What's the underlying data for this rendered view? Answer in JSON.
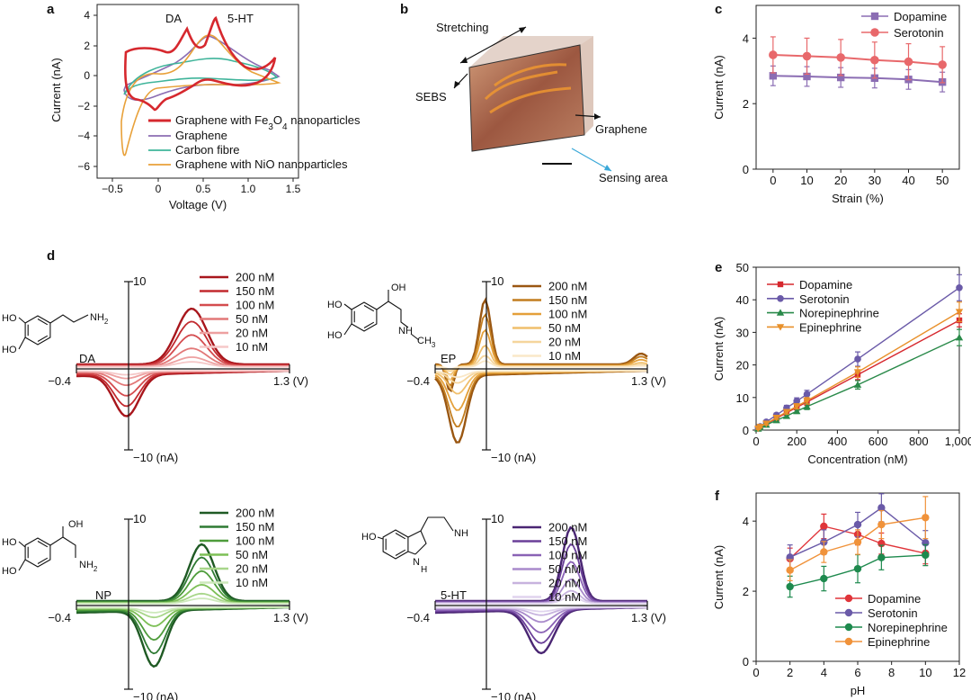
{
  "panel_labels": {
    "a": "a",
    "b": "b",
    "c": "c",
    "d": "d",
    "e": "e",
    "f": "f"
  },
  "panel_a": {
    "ylabel": "Current (nA)",
    "xlabel": "Voltage (V)",
    "yticks": [
      "4",
      "2",
      "0",
      "−2",
      "−4",
      "−6"
    ],
    "xticks": [
      "−0.5",
      "0",
      "0.5",
      "1.0",
      "1.5"
    ],
    "peak_labels": {
      "da": "DA",
      "ht": "5-HT"
    },
    "legend": [
      {
        "label": "Graphene with Fe3O4 nanoparticles",
        "color": "#d6282e"
      },
      {
        "label": "Graphene",
        "color": "#8b6db3"
      },
      {
        "label": "Carbon fibre",
        "color": "#3fb49a"
      },
      {
        "label": "Graphene with NiO nanoparticles",
        "color": "#e8a13a"
      }
    ]
  },
  "panel_b": {
    "labels": {
      "stretching": "Stretching",
      "sebs": "SEBS",
      "graphene": "Graphene",
      "sensing": "Sensing area"
    }
  },
  "panel_d": {
    "concentrations": [
      "200 nM",
      "150 nM",
      "100 nM",
      "50 nM",
      "20 nM",
      "10 nM"
    ],
    "ytop": "10",
    "ybottom": "−10 (nA)",
    "xleft": "−0.4",
    "xright": "1.3 (V)",
    "molecules": {
      "da": "DA",
      "ep": "EP",
      "np": "NP",
      "ht": "5-HT"
    },
    "colors": {
      "da": [
        "#a8161c",
        "#c22a2f",
        "#d44c4f",
        "#e27878",
        "#eda0a0",
        "#f5c8c8"
      ],
      "ep": [
        "#9a5712",
        "#c27d1f",
        "#e4a03a",
        "#f0bf6c",
        "#f5d59c",
        "#fae8c8"
      ],
      "np": [
        "#1f5a24",
        "#2e7a33",
        "#4e9c3b",
        "#7dbf56",
        "#a8d68a",
        "#cde9bb"
      ],
      "ht": [
        "#4a2673",
        "#6a3f98",
        "#8a62b5",
        "#a98acb",
        "#c7b3de",
        "#e0d4ee"
      ]
    },
    "atoms": {
      "ho": "HO",
      "oh": "OH",
      "nh2": "NH",
      "nh2_sub": "2",
      "ch3": "CH",
      "ch3_sub": "3",
      "nh": "NH",
      "h": "H",
      "n": "N"
    }
  },
  "chart_data": [
    {
      "id": "c",
      "type": "line",
      "title": "",
      "xlabel": "Strain (%)",
      "ylabel": "Current (nA)",
      "x": [
        0,
        10,
        20,
        30,
        40,
        50
      ],
      "xlim": [
        -5,
        55
      ],
      "ylim": [
        0,
        5
      ],
      "xticks": [
        "0",
        "10",
        "20",
        "30",
        "40",
        "50"
      ],
      "yticks": [
        "0",
        "2",
        "4"
      ],
      "legend_position": "top-right",
      "series": [
        {
          "name": "Dopamine",
          "color": "#8b6db3",
          "marker": "square",
          "values": [
            2.85,
            2.83,
            2.8,
            2.78,
            2.74,
            2.66
          ],
          "errors": [
            0.3,
            0.3,
            0.3,
            0.3,
            0.3,
            0.3
          ]
        },
        {
          "name": "Serotonin",
          "color": "#e8686b",
          "marker": "circle",
          "values": [
            3.49,
            3.45,
            3.41,
            3.33,
            3.28,
            3.19
          ],
          "errors": [
            0.55,
            0.55,
            0.55,
            0.55,
            0.55,
            0.55
          ]
        }
      ]
    },
    {
      "id": "e",
      "type": "line",
      "xlabel": "Concentration (nM)",
      "ylabel": "Current (nA)",
      "x": [
        10,
        20,
        50,
        100,
        150,
        200,
        250,
        500,
        1000
      ],
      "xlim": [
        0,
        1000
      ],
      "ylim": [
        0,
        50
      ],
      "xticks": [
        "0",
        "200",
        "400",
        "600",
        "800",
        "1,000"
      ],
      "yticks": [
        "0",
        "10",
        "20",
        "30",
        "40",
        "50"
      ],
      "legend_position": "top-left",
      "series": [
        {
          "name": "Dopamine",
          "color": "#d6282e",
          "marker": "square",
          "values": [
            0.5,
            0.9,
            1.9,
            3.6,
            5.3,
            7.0,
            8.6,
            17.0,
            33.7
          ],
          "errors": [
            0.3,
            0.3,
            0.4,
            0.5,
            0.7,
            0.8,
            1.0,
            1.5,
            2.0
          ]
        },
        {
          "name": "Serotonin",
          "color": "#6a5aa8",
          "marker": "circle",
          "values": [
            0.6,
            1.1,
            2.5,
            4.6,
            6.8,
            8.9,
            11.0,
            21.8,
            43.7
          ],
          "errors": [
            0.3,
            0.3,
            0.4,
            0.6,
            0.8,
            1.0,
            1.2,
            2.2,
            4.0
          ]
        },
        {
          "name": "Norepinephrine",
          "color": "#2a8a4a",
          "marker": "triangle-up",
          "values": [
            0.4,
            0.8,
            1.6,
            3.0,
            4.3,
            5.8,
            7.2,
            13.9,
            28.4
          ],
          "errors": [
            0.3,
            0.3,
            0.4,
            0.5,
            0.6,
            0.7,
            0.9,
            1.3,
            2.5
          ]
        },
        {
          "name": "Epinephrine",
          "color": "#e8902a",
          "marker": "triangle-down",
          "values": [
            0.5,
            1.0,
            2.0,
            3.8,
            5.6,
            7.3,
            9.0,
            17.8,
            36.3
          ],
          "errors": [
            0.3,
            0.3,
            0.4,
            0.5,
            0.7,
            0.8,
            1.0,
            1.6,
            3.0
          ]
        }
      ]
    },
    {
      "id": "f",
      "type": "line",
      "xlabel": "pH",
      "ylabel": "Current (nA)",
      "x": [
        2,
        4,
        6,
        7.4,
        10
      ],
      "xlim": [
        0,
        12
      ],
      "ylim": [
        0,
        4.8
      ],
      "xticks": [
        "0",
        "2",
        "4",
        "6",
        "8",
        "10",
        "12"
      ],
      "yticks": [
        "0",
        "2",
        "4"
      ],
      "legend_position": "bottom-right",
      "series": [
        {
          "name": "Dopamine",
          "color": "#e0353a",
          "marker": "circle",
          "values": [
            2.93,
            3.85,
            3.62,
            3.36,
            3.08
          ],
          "errors": [
            0.3,
            0.35,
            0.3,
            0.3,
            0.3
          ]
        },
        {
          "name": "Serotonin",
          "color": "#6a5aa8",
          "marker": "circle",
          "values": [
            2.97,
            3.4,
            3.9,
            4.38,
            3.38
          ],
          "errors": [
            0.35,
            0.35,
            0.35,
            0.4,
            0.35
          ]
        },
        {
          "name": "Norepinephrine",
          "color": "#1e8a4e",
          "marker": "circle",
          "values": [
            2.13,
            2.36,
            2.64,
            2.96,
            3.03
          ],
          "errors": [
            0.3,
            0.35,
            0.4,
            0.35,
            0.3
          ]
        },
        {
          "name": "Epinephrine",
          "color": "#f0923a",
          "marker": "circle",
          "values": [
            2.6,
            3.12,
            3.4,
            3.9,
            4.1
          ],
          "errors": [
            0.3,
            0.3,
            0.35,
            0.4,
            0.6
          ]
        }
      ]
    }
  ]
}
